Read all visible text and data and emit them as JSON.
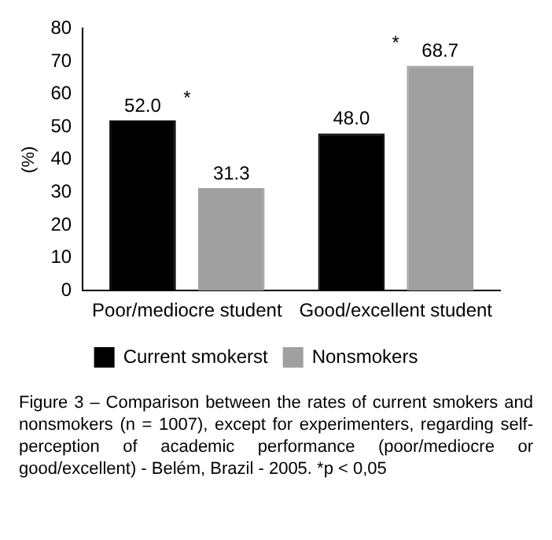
{
  "chart_data": {
    "type": "bar",
    "ylabel": "(%)",
    "categories": [
      "Poor/mediocre student",
      "Good/excellent student"
    ],
    "series": [
      {
        "name": "Current smokerst",
        "color": "#000000",
        "values": [
          52.0,
          48.0
        ],
        "value_labels": [
          "52.0",
          "48.0"
        ]
      },
      {
        "name": "Nonsmokers",
        "color": "#a0a0a0",
        "values": [
          31.3,
          68.7
        ],
        "value_labels": [
          "31.3",
          "68.7"
        ]
      }
    ],
    "ylim": [
      0,
      80
    ],
    "yticks": [
      0,
      10,
      20,
      30,
      40,
      50,
      60,
      70,
      80
    ],
    "grid": false,
    "legend": "bottom",
    "annotations": [
      "*",
      "*",
      "Figure 3 – Comparison between the rates of current smokers and nonsmokers (n = 1007), except for experimenters, regarding self-perception of academic performance (poor/mediocre or good/excellent) - Belém, Brazil - 2005. *p < 0,05"
    ]
  }
}
